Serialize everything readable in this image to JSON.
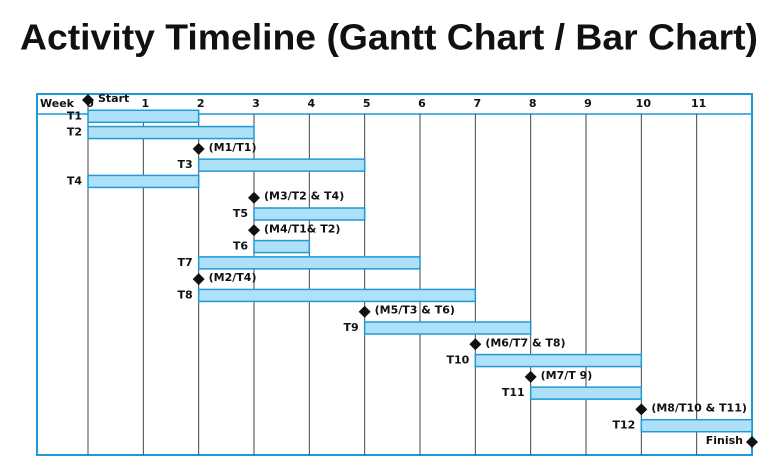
{
  "chart_data": {
    "type": "gantt",
    "title": "Activity Timeline (Gantt Chart / Bar Chart)",
    "x_label": "Week",
    "xlim": [
      0,
      12
    ],
    "xticks": [
      0,
      1,
      2,
      3,
      4,
      5,
      6,
      7,
      8,
      9,
      10,
      11
    ],
    "bar_color": "#aee0f7",
    "bar_edge": "#1e9ad6",
    "grid": true,
    "rows": [
      {
        "kind": "milestone",
        "label": "Start",
        "at": 0
      },
      {
        "kind": "task",
        "name": "T1",
        "start": 0,
        "end": 2
      },
      {
        "kind": "task",
        "name": "T2",
        "start": 0,
        "end": 3
      },
      {
        "kind": "milestone",
        "label": "(M1/T1)",
        "at": 2
      },
      {
        "kind": "task",
        "name": "T3",
        "start": 2,
        "end": 5
      },
      {
        "kind": "task",
        "name": "T4",
        "start": 0,
        "end": 2
      },
      {
        "kind": "milestone",
        "label": "(M3/T2 & T4)",
        "at": 3
      },
      {
        "kind": "task",
        "name": "T5",
        "start": 3,
        "end": 5
      },
      {
        "kind": "milestone",
        "label": "(M4/T1& T2)",
        "at": 3
      },
      {
        "kind": "task",
        "name": "T6",
        "start": 3,
        "end": 4
      },
      {
        "kind": "task",
        "name": "T7",
        "start": 2,
        "end": 6
      },
      {
        "kind": "milestone",
        "label": "(M2/T4)",
        "at": 2
      },
      {
        "kind": "task",
        "name": "T8",
        "start": 2,
        "end": 7
      },
      {
        "kind": "milestone",
        "label": "(M5/T3 & T6)",
        "at": 5
      },
      {
        "kind": "task",
        "name": "T9",
        "start": 5,
        "end": 8
      },
      {
        "kind": "milestone",
        "label": "(M6/T7 & T8)",
        "at": 7
      },
      {
        "kind": "task",
        "name": "T10",
        "start": 7,
        "end": 10
      },
      {
        "kind": "milestone",
        "label": "(M7/T 9)",
        "at": 8
      },
      {
        "kind": "task",
        "name": "T11",
        "start": 8,
        "end": 10
      },
      {
        "kind": "milestone",
        "label": "(M8/T10 & T11)",
        "at": 10
      },
      {
        "kind": "task",
        "name": "T12",
        "start": 10,
        "end": 12
      },
      {
        "kind": "milestone",
        "label": "Finish",
        "at": 12
      }
    ]
  }
}
